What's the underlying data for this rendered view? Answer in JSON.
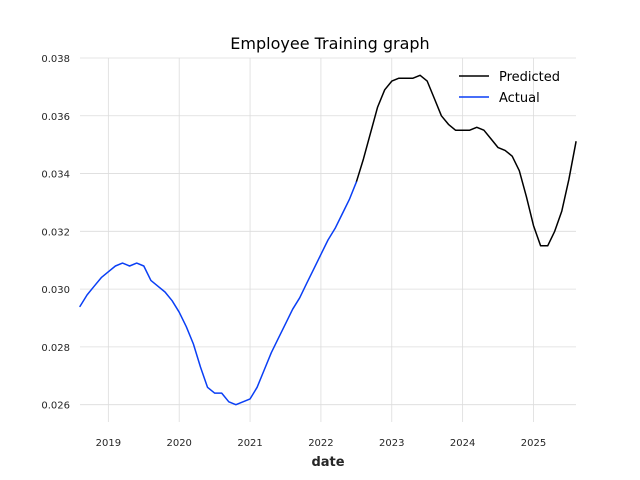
{
  "chart_data": {
    "type": "line",
    "title": "Employee Training graph",
    "xlabel": "date",
    "ylabel": "",
    "xlim": [
      2018.6,
      2025.6
    ],
    "ylim": [
      0.0254,
      0.038
    ],
    "x_ticks": [
      2019,
      2020,
      2021,
      2022,
      2023,
      2024,
      2025
    ],
    "x_tick_labels": [
      "2019",
      "2020",
      "2021",
      "2022",
      "2023",
      "2024",
      "2025"
    ],
    "y_ticks": [
      0.026,
      0.028,
      0.03,
      0.032,
      0.034,
      0.036,
      0.038
    ],
    "y_tick_labels": [
      "0.026",
      "0.028",
      "0.030",
      "0.032",
      "0.034",
      "0.036",
      "0.038"
    ],
    "grid": true,
    "legend_position": "top-right",
    "series": [
      {
        "name": "Predicted",
        "color": "#000000",
        "x": [
          2022.5,
          2022.6,
          2022.7,
          2022.8,
          2022.9,
          2023.0,
          2023.1,
          2023.2,
          2023.3,
          2023.4,
          2023.5,
          2023.6,
          2023.7,
          2023.8,
          2023.9,
          2024.0,
          2024.1,
          2024.2,
          2024.3,
          2024.4,
          2024.5,
          2024.6,
          2024.7,
          2024.8,
          2024.9,
          2025.0,
          2025.1,
          2025.2,
          2025.3,
          2025.4,
          2025.5,
          2025.6
        ],
        "y": [
          0.0337,
          0.0345,
          0.0354,
          0.0363,
          0.0369,
          0.0372,
          0.0373,
          0.0373,
          0.0373,
          0.0374,
          0.0372,
          0.0366,
          0.036,
          0.0357,
          0.0355,
          0.0355,
          0.0355,
          0.0356,
          0.0355,
          0.0352,
          0.0349,
          0.0348,
          0.0346,
          0.0341,
          0.0332,
          0.0322,
          0.0315,
          0.0315,
          0.032,
          0.0327,
          0.0338,
          0.0351
        ]
      },
      {
        "name": "Actual",
        "color": "#0a3ff5",
        "x": [
          2018.6,
          2018.7,
          2018.8,
          2018.9,
          2019.0,
          2019.1,
          2019.2,
          2019.3,
          2019.4,
          2019.5,
          2019.6,
          2019.7,
          2019.8,
          2019.9,
          2020.0,
          2020.1,
          2020.2,
          2020.3,
          2020.4,
          2020.5,
          2020.6,
          2020.7,
          2020.8,
          2020.9,
          2021.0,
          2021.1,
          2021.2,
          2021.3,
          2021.4,
          2021.5,
          2021.6,
          2021.7,
          2021.8,
          2021.9,
          2022.0,
          2022.1,
          2022.2,
          2022.3,
          2022.4,
          2022.5
        ],
        "y": [
          0.0294,
          0.0298,
          0.0301,
          0.0304,
          0.0306,
          0.0308,
          0.0309,
          0.0308,
          0.0309,
          0.0308,
          0.0303,
          0.0301,
          0.0299,
          0.0296,
          0.0292,
          0.0287,
          0.0281,
          0.0273,
          0.0266,
          0.0264,
          0.0264,
          0.0261,
          0.026,
          0.0261,
          0.0262,
          0.0266,
          0.0272,
          0.0278,
          0.0283,
          0.0288,
          0.0293,
          0.0297,
          0.0302,
          0.0307,
          0.0312,
          0.0317,
          0.0321,
          0.0326,
          0.0331,
          0.0337
        ]
      }
    ]
  }
}
